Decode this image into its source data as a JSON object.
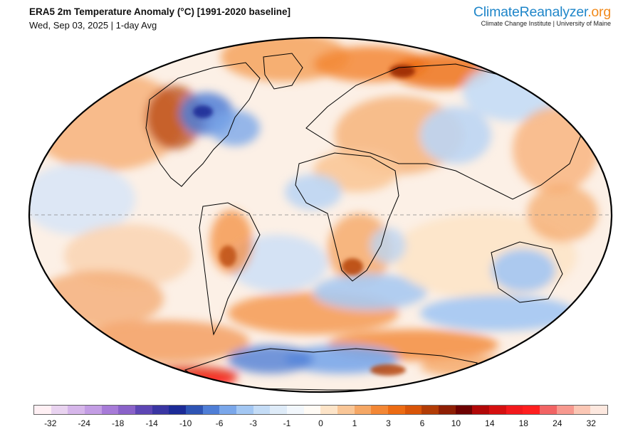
{
  "title": "ERA5 2m Temperature Anomaly (°C) [1991-2020 baseline]",
  "subtitle": "Wed, Sep 03, 2025 | 1-day Avg",
  "brand": {
    "name_part1": "Climate",
    "name_part2": "Reanalyzer",
    "name_part3": ".org",
    "subline": "Climate Change Institute | University of Maine"
  },
  "map": {
    "projection": "Robinson",
    "variable": "2m temperature anomaly",
    "background_color": "#ffffff",
    "coastline_color": "#000000",
    "equator_line": "dashed"
  },
  "colorbar": {
    "colors": [
      "#fff0f4",
      "#e9d3f0",
      "#d6b6ea",
      "#c39de4",
      "#a77bd8",
      "#8a62c9",
      "#5d46b4",
      "#3a36a3",
      "#1c2b97",
      "#2e54b4",
      "#4f7ed6",
      "#7aa7ea",
      "#a3c7f3",
      "#c4dcf6",
      "#deebf8",
      "#f2f7fc",
      "#fffbf5",
      "#fde4c8",
      "#f9c697",
      "#f5a765",
      "#f38735",
      "#ec6b13",
      "#d85408",
      "#b23c06",
      "#8e1f05",
      "#6d0202",
      "#b10808",
      "#d51010",
      "#f2191c",
      "#ff1f1f",
      "#f26464",
      "#f7998f",
      "#fbc7b5",
      "#fde8df"
    ],
    "tick_labels": [
      "-32",
      "-24",
      "-18",
      "-14",
      "-10",
      "-6",
      "-3",
      "-1",
      "0",
      "1",
      "3",
      "6",
      "10",
      "14",
      "18",
      "24",
      "32"
    ]
  }
}
